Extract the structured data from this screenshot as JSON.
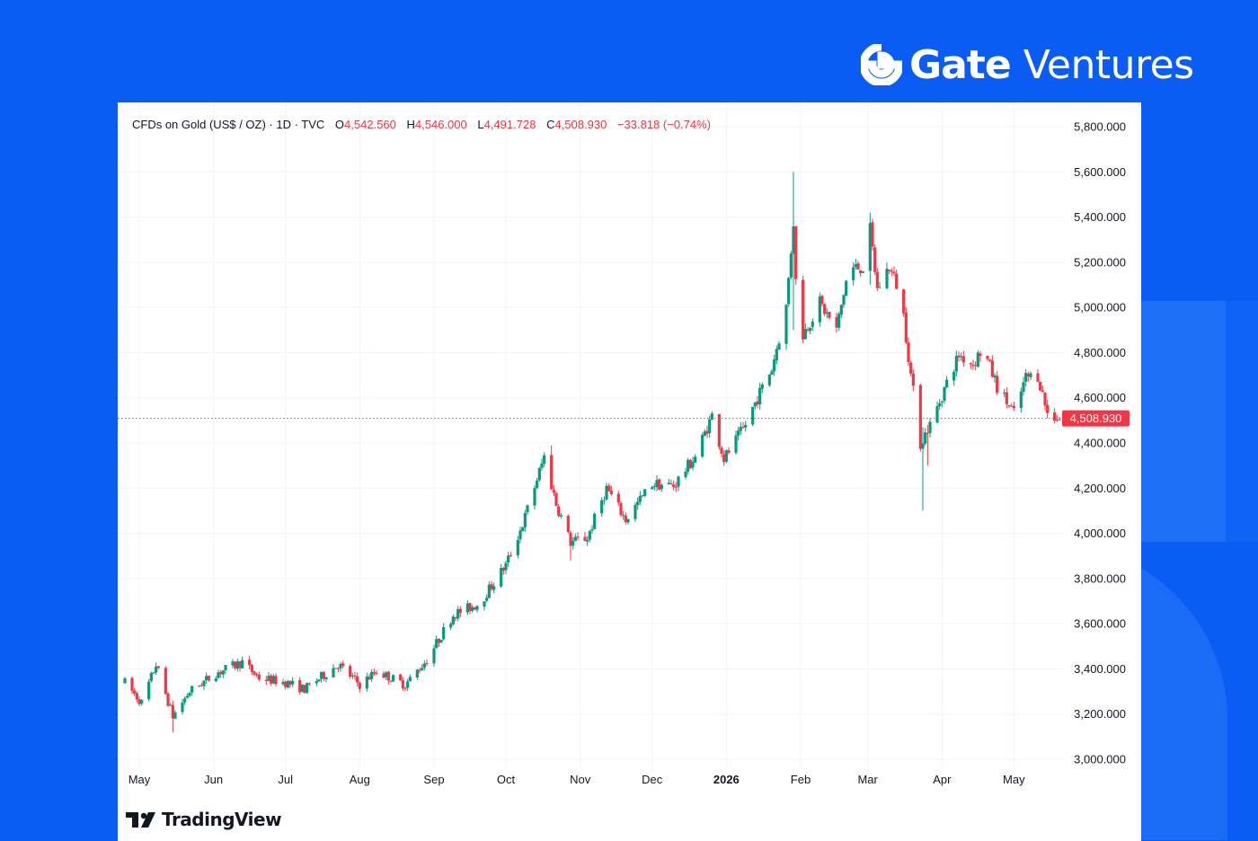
{
  "brand": {
    "gate": "Gate",
    "ventures": "Ventures",
    "icon": "gate-logo-icon"
  },
  "legend": {
    "symbol": "CFDs on Gold (US$ / OZ) · 1D · TVC",
    "o_label": "O",
    "o_value": "4,542.560",
    "h_label": "H",
    "h_value": "4,546.000",
    "l_label": "L",
    "l_value": "4,491.728",
    "c_label": "C",
    "c_value": "4,508.930",
    "change": "−33.818 (−0.74%)"
  },
  "footer": {
    "logo_text": "TradingView",
    "icon": "tradingview-logo-icon"
  },
  "colors": {
    "up": "#089981",
    "down": "#f23645",
    "grid": "#f0f3fa",
    "text": "#131722",
    "background": "#0a5cf4"
  },
  "chart_data": {
    "type": "candlestick",
    "ylim": [
      2950,
      5900
    ],
    "y_ticks": [
      "5,800.000",
      "5,600.000",
      "5,400.000",
      "5,200.000",
      "5,000.000",
      "4,800.000",
      "4,600.000",
      "4,400.000",
      "4,200.000",
      "4,000.000",
      "3,800.000",
      "3,600.000",
      "3,400.000",
      "3,200.000",
      "3,000.000"
    ],
    "y_tick_values": [
      5800,
      5600,
      5400,
      5200,
      5000,
      4800,
      4600,
      4400,
      4200,
      4000,
      3800,
      3600,
      3400,
      3200,
      3000
    ],
    "x_ticks": [
      {
        "label": "May",
        "date": "2025-05-01",
        "bold": false
      },
      {
        "label": "Jun",
        "date": "2025-06-01",
        "bold": false
      },
      {
        "label": "Jul",
        "date": "2025-07-01",
        "bold": false
      },
      {
        "label": "Aug",
        "date": "2025-08-01",
        "bold": false
      },
      {
        "label": "Sep",
        "date": "2025-09-01",
        "bold": false
      },
      {
        "label": "Oct",
        "date": "2025-10-01",
        "bold": false
      },
      {
        "label": "Nov",
        "date": "2025-11-01",
        "bold": false
      },
      {
        "label": "Dec",
        "date": "2025-12-01",
        "bold": false
      },
      {
        "label": "2026",
        "date": "2026-01-01",
        "bold": true
      },
      {
        "label": "Feb",
        "date": "2026-02-01",
        "bold": false
      },
      {
        "label": "Mar",
        "date": "2026-03-01",
        "bold": false
      },
      {
        "label": "Apr",
        "date": "2026-04-01",
        "bold": false
      },
      {
        "label": "May",
        "date": "2026-05-01",
        "bold": false
      }
    ],
    "start_date": "2025-04-25",
    "end_date": "2026-05-20",
    "last_price": 4508.93,
    "last_price_label": "4,508.930",
    "keypoints": [
      [
        "2025-04-25",
        3340
      ],
      [
        "2025-05-02",
        3250
      ],
      [
        "2025-05-08",
        3420
      ],
      [
        "2025-05-15",
        3190
      ],
      [
        "2025-05-22",
        3300
      ],
      [
        "2025-06-02",
        3380
      ],
      [
        "2025-06-13",
        3430
      ],
      [
        "2025-06-20",
        3360
      ],
      [
        "2025-07-01",
        3340
      ],
      [
        "2025-07-09",
        3310
      ],
      [
        "2025-07-23",
        3420
      ],
      [
        "2025-08-01",
        3330
      ],
      [
        "2025-08-08",
        3390
      ],
      [
        "2025-08-20",
        3330
      ],
      [
        "2025-08-29",
        3440
      ],
      [
        "2025-09-09",
        3640
      ],
      [
        "2025-09-20",
        3690
      ],
      [
        "2025-10-01",
        3860
      ],
      [
        "2025-10-08",
        4040
      ],
      [
        "2025-10-17",
        4340
      ],
      [
        "2025-10-22",
        4130
      ],
      [
        "2025-10-28",
        3960
      ],
      [
        "2025-11-04",
        3980
      ],
      [
        "2025-11-12",
        4200
      ],
      [
        "2025-11-20",
        4060
      ],
      [
        "2025-12-01",
        4220
      ],
      [
        "2025-12-10",
        4210
      ],
      [
        "2025-12-19",
        4340
      ],
      [
        "2025-12-26",
        4520
      ],
      [
        "2025-12-31",
        4330
      ],
      [
        "2026-01-08",
        4460
      ],
      [
        "2026-01-14",
        4600
      ],
      [
        "2026-01-20",
        4730
      ],
      [
        "2026-01-26",
        5000
      ],
      [
        "2026-01-29",
        5380
      ],
      [
        "2026-01-31",
        4850
      ],
      [
        "2026-02-03",
        4900
      ],
      [
        "2026-02-09",
        5020
      ],
      [
        "2026-02-16",
        4900
      ],
      [
        "2026-02-21",
        5170
      ],
      [
        "2026-02-27",
        5180
      ],
      [
        "2026-03-02",
        5340
      ],
      [
        "2026-03-05",
        5080
      ],
      [
        "2026-03-10",
        5180
      ],
      [
        "2026-03-15",
        5050
      ],
      [
        "2026-03-19",
        4700
      ],
      [
        "2026-03-23",
        4400
      ],
      [
        "2026-03-28",
        4500
      ],
      [
        "2026-04-02",
        4640
      ],
      [
        "2026-04-08",
        4790
      ],
      [
        "2026-04-14",
        4750
      ],
      [
        "2026-04-18",
        4820
      ],
      [
        "2026-04-24",
        4650
      ],
      [
        "2026-05-01",
        4530
      ],
      [
        "2026-05-06",
        4690
      ],
      [
        "2026-05-11",
        4700
      ],
      [
        "2026-05-15",
        4530
      ],
      [
        "2026-05-20",
        4509
      ]
    ],
    "spikes": [
      {
        "date": "2026-01-29",
        "high": 5600,
        "low": 4900
      },
      {
        "date": "2026-02-01",
        "high": 5430,
        "low": 4400
      },
      {
        "date": "2026-03-02",
        "high": 5420,
        "low": 5100
      },
      {
        "date": "2026-03-24",
        "high": 4470,
        "low": 4100
      },
      {
        "date": "2026-03-26",
        "high": 4480,
        "low": 4300
      },
      {
        "date": "2025-05-15",
        "high": 3260,
        "low": 3120
      },
      {
        "date": "2025-10-20",
        "high": 4390,
        "low": 4200
      },
      {
        "date": "2025-10-28",
        "high": 4010,
        "low": 3880
      }
    ]
  }
}
